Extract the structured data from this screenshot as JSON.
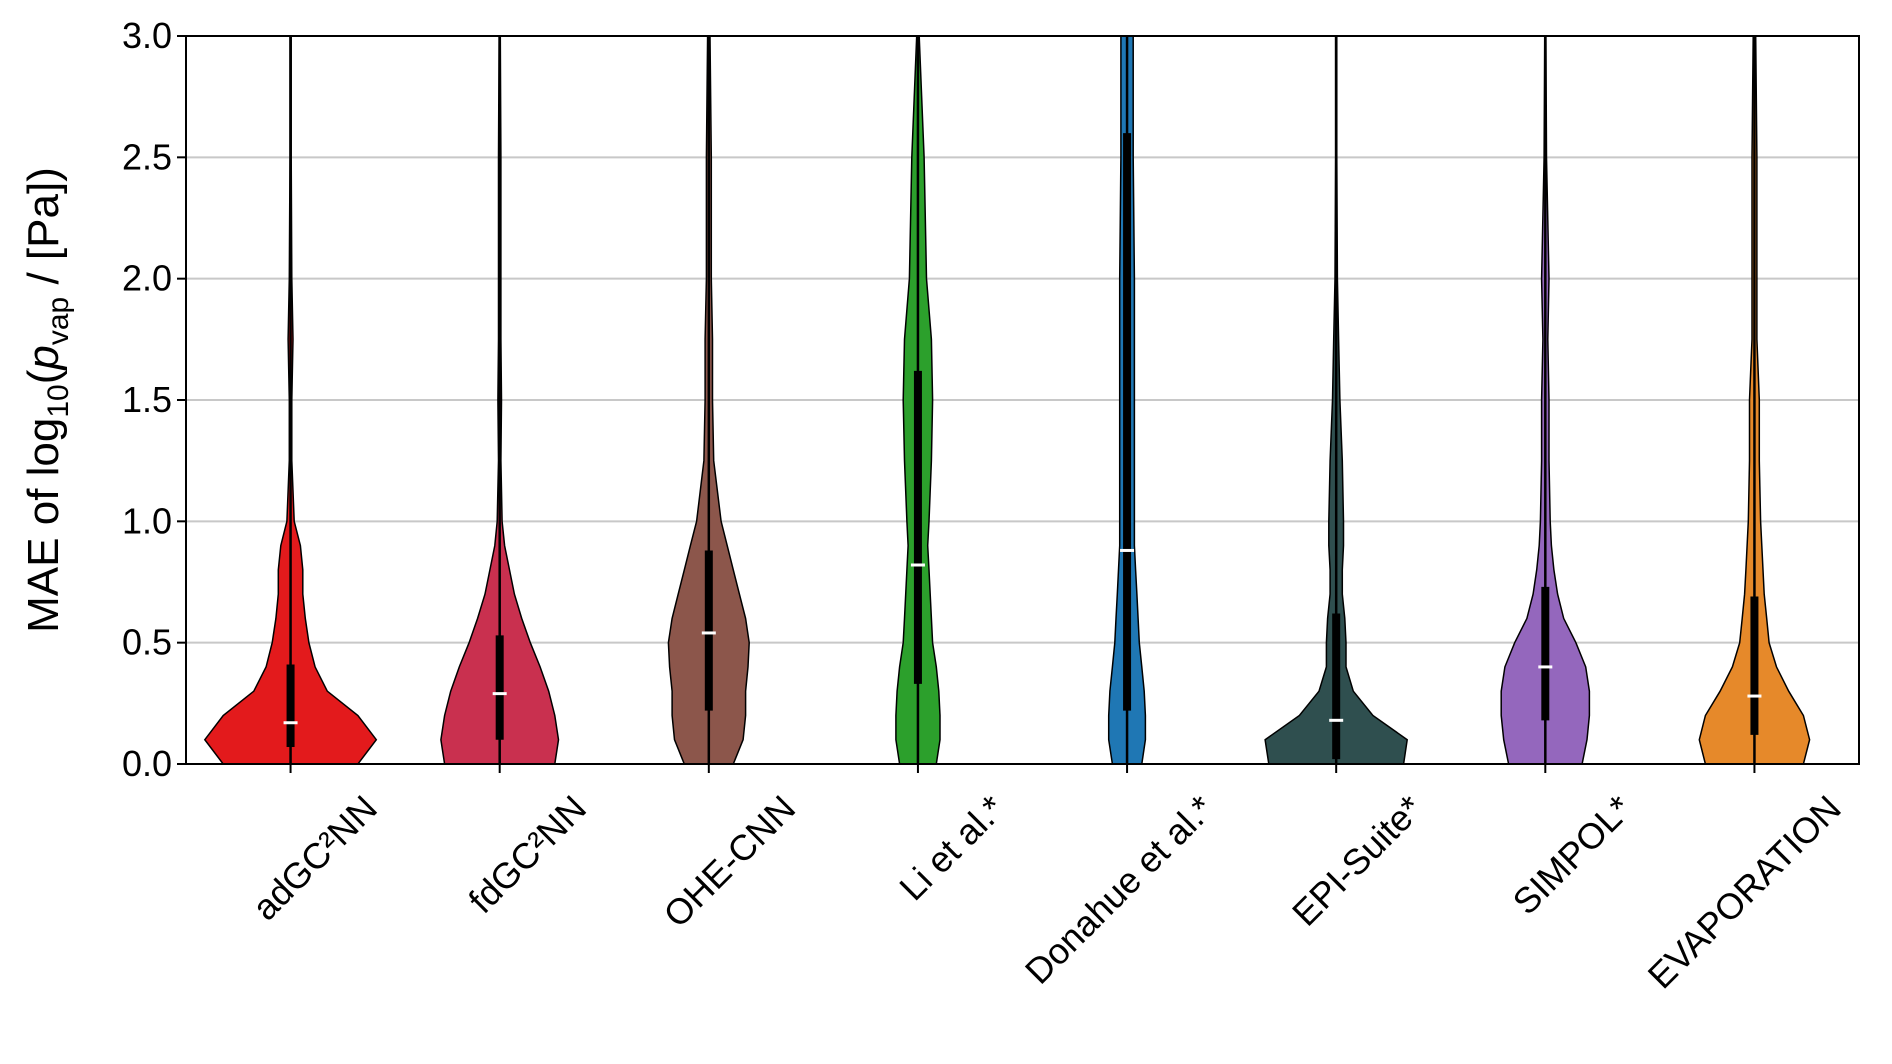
{
  "chart_data": {
    "type": "violin",
    "ylabel": [
      "MAE of log",
      "10",
      "(",
      "p",
      "vap",
      " / [Pa])"
    ],
    "categories": [
      "adGC²NN",
      "fdGC²NN",
      "OHE-CNN",
      "Li et al.*",
      "Donahue et al.*",
      "EPI-Suite*",
      "SIMPOL*",
      "EVAPORATION"
    ],
    "ylim": [
      0,
      3
    ],
    "yticks": [
      {
        "value": 0,
        "label": "0.0"
      },
      0.5,
      {
        "value": 1,
        "label": "1.0"
      },
      1.5,
      {
        "value": 2,
        "label": "2.0"
      },
      2.5,
      {
        "value": 3,
        "label": "3.0"
      }
    ],
    "grid": true,
    "kde_y": [
      0,
      0.1,
      0.2,
      0.3,
      0.4,
      0.5,
      0.6,
      0.7,
      0.8,
      0.9,
      1.0,
      1.25,
      1.5,
      1.75,
      2.0,
      2.5,
      3.0
    ],
    "series": [
      {
        "name": "adGC²NN",
        "color": "#e31a1c",
        "min": 0,
        "q1": 0.07,
        "median": 0.17,
        "q3": 0.41,
        "max": 3.0,
        "density": [
          55,
          70,
          55,
          30,
          20,
          15,
          12,
          10,
          10,
          8,
          3,
          1,
          1,
          2,
          1,
          0.5,
          0.5
        ]
      },
      {
        "name": "fdGC²NN",
        "color": "#c9304f",
        "min": 0,
        "q1": 0.1,
        "median": 0.29,
        "q3": 0.53,
        "max": 3.0,
        "density": [
          45,
          48,
          45,
          40,
          33,
          25,
          18,
          12,
          8,
          4,
          2,
          1,
          1.5,
          1,
          1,
          1,
          0.5
        ]
      },
      {
        "name": "OHE-CNN",
        "color": "#8c564b",
        "min": 0,
        "q1": 0.22,
        "median": 0.54,
        "q3": 0.88,
        "max": 3.0,
        "density": [
          20,
          28,
          30,
          30,
          32,
          33,
          30,
          25,
          20,
          15,
          10,
          4,
          3,
          3,
          2,
          2,
          1
        ]
      },
      {
        "name": "Li et al.*",
        "color": "#2ca02c",
        "min": 0,
        "q1": 0.33,
        "median": 0.82,
        "q3": 1.62,
        "max": 3.0,
        "density": [
          15,
          18,
          18,
          17,
          15,
          12,
          11,
          10,
          9,
          8,
          9,
          11,
          12,
          11,
          7,
          5,
          1
        ]
      },
      {
        "name": "Donahue et al.*",
        "color": "#1f77b4",
        "min": 0,
        "q1": 0.22,
        "median": 0.88,
        "q3": 2.6,
        "max": 3.0,
        "density": [
          12,
          15,
          15,
          14,
          12,
          10,
          9,
          8,
          7,
          6,
          6,
          6,
          6,
          6,
          6,
          5,
          5
        ]
      },
      {
        "name": "EPI-Suite*",
        "color": "#2f4f4f",
        "min": 0,
        "q1": 0.02,
        "median": 0.18,
        "q3": 0.62,
        "max": 3.0,
        "density": [
          55,
          58,
          30,
          14,
          8,
          8,
          7,
          5,
          5,
          6,
          6,
          5,
          3,
          2,
          1,
          0.5,
          0.5
        ]
      },
      {
        "name": "SIMPOL*",
        "color": "#9467bd",
        "min": 0,
        "q1": 0.18,
        "median": 0.4,
        "q3": 0.73,
        "max": 3.0,
        "density": [
          30,
          34,
          36,
          36,
          33,
          25,
          15,
          10,
          7,
          5,
          4,
          3,
          3,
          2,
          3,
          1,
          0.5
        ]
      },
      {
        "name": "EVAPORATION",
        "color": "#e6892a",
        "min": 0,
        "q1": 0.12,
        "median": 0.28,
        "q3": 0.69,
        "max": 3.0,
        "density": [
          40,
          45,
          40,
          28,
          18,
          12,
          10,
          8,
          7,
          6,
          5,
          4,
          4,
          2,
          2,
          2,
          1
        ]
      }
    ]
  }
}
